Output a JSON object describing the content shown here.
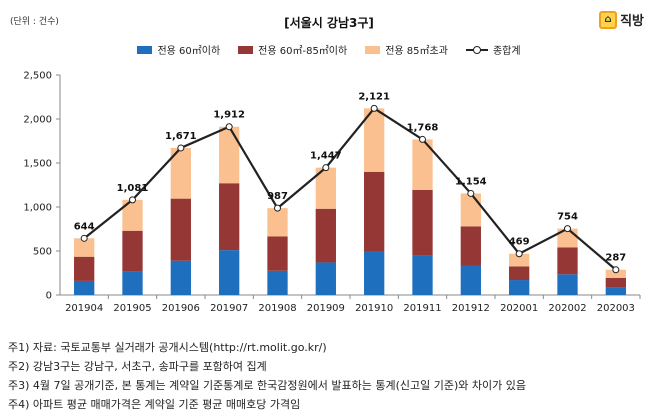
{
  "unit_label": "(단위 : 건수)",
  "brand": {
    "name": "직방",
    "icon": "house-icon"
  },
  "notes": [
    "주1) 자료: 국토교통부 실거래가 공개시스템(http://rt.molit.go.kr/)",
    "주2) 강남3구는 강남구, 서초구, 송파구를 포함하여 집계",
    "주3) 4월 7일 공개기준, 본 통계는 계약일 기준통계로 한국감정원에서 발표하는 통계(신고일 기준)와 차이가 있음",
    "주4) 아파트 평균 매매가격은 계약일 기준 평균 매매호당 가격임"
  ],
  "chart_data": {
    "type": "bar",
    "stacked": true,
    "title": "[서울시 강남3구]",
    "categories": [
      "201904",
      "201905",
      "201906",
      "201907",
      "201908",
      "201909",
      "201910",
      "201911",
      "201912",
      "202001",
      "202002",
      "202003"
    ],
    "series": [
      {
        "name": "전용 60㎡이하",
        "color": "#1f6fbf",
        "values": [
          160,
          265,
          390,
          510,
          275,
          370,
          500,
          450,
          330,
          170,
          235,
          90
        ]
      },
      {
        "name": "전용 60㎡-85㎡이하",
        "color": "#953735",
        "values": [
          275,
          465,
          705,
          760,
          390,
          610,
          900,
          745,
          450,
          155,
          305,
          105
        ]
      },
      {
        "name": "전용 85㎡초과",
        "color": "#fac090",
        "values": [
          209,
          351,
          576,
          642,
          322,
          467,
          721,
          573,
          374,
          144,
          214,
          92
        ]
      }
    ],
    "line": {
      "name": "종합계",
      "color": "#222222",
      "values": [
        644,
        1081,
        1671,
        1912,
        987,
        1447,
        2121,
        1768,
        1154,
        469,
        754,
        287
      ],
      "labels": [
        "644",
        "1,081",
        "1,671",
        "1,912",
        "987",
        "1,447",
        "2,121",
        "1,768",
        "1,154",
        "469",
        "754",
        "287"
      ]
    },
    "ylim": [
      0,
      2500
    ],
    "yticks": [
      0,
      500,
      1000,
      1500,
      2000,
      2500
    ],
    "ytick_labels": [
      "0",
      "500",
      "1,000",
      "1,500",
      "2,000",
      "2,500"
    ],
    "grid": false,
    "legend_position": "top"
  }
}
